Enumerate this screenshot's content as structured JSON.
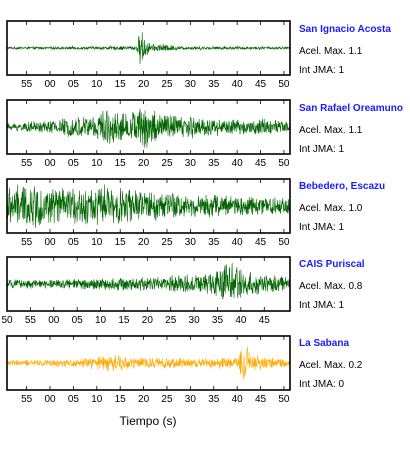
{
  "chart_data": [
    {
      "type": "line",
      "station": "San Ignacio Acosta",
      "acel_label": "Acel. Max.",
      "acel_value": "1.1",
      "jma_label": "Int JMA:",
      "jma_value": "1",
      "color": "#006400",
      "x_tick_labels": [
        "55",
        "00",
        "05",
        "10",
        "15",
        "20",
        "25",
        "30",
        "35",
        "40",
        "45",
        "50"
      ],
      "x_tick_seconds": [
        55,
        60,
        65,
        70,
        75,
        80,
        85,
        90,
        95,
        100,
        105,
        110
      ],
      "x_range_seconds": [
        50.8,
        111.3
      ],
      "y_range": [
        -1,
        1
      ],
      "waveform_envelope": [
        {
          "t": 50.8,
          "amp": 0.05
        },
        {
          "t": 70,
          "amp": 0.07
        },
        {
          "t": 78.5,
          "amp": 0.1
        },
        {
          "t": 79.4,
          "amp": 0.9
        },
        {
          "t": 80.2,
          "amp": 0.45
        },
        {
          "t": 82,
          "amp": 0.15
        },
        {
          "t": 83.5,
          "amp": 0.2
        },
        {
          "t": 88,
          "amp": 0.08
        },
        {
          "t": 111.3,
          "amp": 0.06
        }
      ]
    },
    {
      "type": "line",
      "station": "San Rafael Oreamuno",
      "acel_label": "Acel. Max.",
      "acel_value": "1.1",
      "jma_label": "Int JMA:",
      "jma_value": "1",
      "color": "#006400",
      "x_tick_labels": [
        "55",
        "00",
        "05",
        "10",
        "15",
        "20",
        "25",
        "30",
        "35",
        "40",
        "45",
        "50"
      ],
      "x_tick_seconds": [
        55,
        60,
        65,
        70,
        75,
        80,
        85,
        90,
        95,
        100,
        105,
        110
      ],
      "x_range_seconds": [
        50.8,
        111.3
      ],
      "y_range": [
        -1,
        1
      ],
      "waveform_envelope": [
        {
          "t": 50.8,
          "amp": 0.15
        },
        {
          "t": 60,
          "amp": 0.3
        },
        {
          "t": 68,
          "amp": 0.5
        },
        {
          "t": 72,
          "amp": 0.75
        },
        {
          "t": 77,
          "amp": 0.6
        },
        {
          "t": 80,
          "amp": 0.95
        },
        {
          "t": 85,
          "amp": 0.6
        },
        {
          "t": 92,
          "amp": 0.45
        },
        {
          "t": 100,
          "amp": 0.3
        },
        {
          "t": 106,
          "amp": 0.4
        },
        {
          "t": 111.3,
          "amp": 0.2
        }
      ]
    },
    {
      "type": "line",
      "station": "Bebedero, Escazu",
      "acel_label": "Acel. Max.",
      "acel_value": "1.0",
      "jma_label": "Int JMA:",
      "jma_value": "1",
      "color": "#006400",
      "x_tick_labels": [
        "55",
        "00",
        "05",
        "10",
        "15",
        "20",
        "25",
        "30",
        "35",
        "40",
        "45",
        "50"
      ],
      "x_tick_seconds": [
        55,
        60,
        65,
        70,
        75,
        80,
        85,
        90,
        95,
        100,
        105,
        110
      ],
      "x_range_seconds": [
        50.8,
        111.3
      ],
      "y_range": [
        -1,
        1
      ],
      "waveform_envelope": [
        {
          "t": 50.8,
          "amp": 0.85
        },
        {
          "t": 56,
          "amp": 0.95
        },
        {
          "t": 62,
          "amp": 0.75
        },
        {
          "t": 68,
          "amp": 0.8
        },
        {
          "t": 72,
          "amp": 0.9
        },
        {
          "t": 78,
          "amp": 0.7
        },
        {
          "t": 84,
          "amp": 0.65
        },
        {
          "t": 90,
          "amp": 0.5
        },
        {
          "t": 96,
          "amp": 0.5
        },
        {
          "t": 102,
          "amp": 0.45
        },
        {
          "t": 111.3,
          "amp": 0.4
        }
      ]
    },
    {
      "type": "line",
      "station": "CAIS Puriscal",
      "acel_label": "Acel. Max.",
      "acel_value": "0.8",
      "jma_label": "Int JMA:",
      "jma_value": "1",
      "color": "#006400",
      "x_tick_labels": [
        "50",
        "55",
        "00",
        "05",
        "10",
        "15",
        "20",
        "25",
        "30",
        "35",
        "40",
        "45"
      ],
      "x_tick_seconds": [
        50,
        55,
        60,
        65,
        70,
        75,
        80,
        85,
        90,
        95,
        100,
        105
      ],
      "x_range_seconds": [
        50,
        110.5
      ],
      "y_range": [
        -1,
        1
      ],
      "waveform_envelope": [
        {
          "t": 50,
          "amp": 0.18
        },
        {
          "t": 60,
          "amp": 0.2
        },
        {
          "t": 70,
          "amp": 0.25
        },
        {
          "t": 80,
          "amp": 0.3
        },
        {
          "t": 88,
          "amp": 0.4
        },
        {
          "t": 93,
          "amp": 0.5
        },
        {
          "t": 96,
          "amp": 0.85
        },
        {
          "t": 98,
          "amp": 0.95
        },
        {
          "t": 101,
          "amp": 0.55
        },
        {
          "t": 105,
          "amp": 0.4
        },
        {
          "t": 110.5,
          "amp": 0.3
        }
      ]
    },
    {
      "type": "line",
      "station": "La Sabana",
      "acel_label": "Acel. Max.",
      "acel_value": "0.2",
      "jma_label": "Int JMA:",
      "jma_value": "0",
      "color": "#ffaa00",
      "x_tick_labels": [
        "55",
        "00",
        "05",
        "10",
        "15",
        "20",
        "25",
        "30",
        "35",
        "40",
        "45",
        "50"
      ],
      "x_tick_seconds": [
        55,
        60,
        65,
        70,
        75,
        80,
        85,
        90,
        95,
        100,
        105,
        110
      ],
      "x_range_seconds": [
        50.8,
        111.3
      ],
      "y_range": [
        -1,
        1
      ],
      "waveform_envelope": [
        {
          "t": 50.8,
          "amp": 0.12
        },
        {
          "t": 60,
          "amp": 0.15
        },
        {
          "t": 68,
          "amp": 0.22
        },
        {
          "t": 74,
          "amp": 0.4
        },
        {
          "t": 78,
          "amp": 0.25
        },
        {
          "t": 88,
          "amp": 0.22
        },
        {
          "t": 100,
          "amp": 0.25
        },
        {
          "t": 101.5,
          "amp": 0.95
        },
        {
          "t": 103,
          "amp": 0.4
        },
        {
          "t": 111.3,
          "amp": 0.15
        }
      ]
    }
  ],
  "x_axis_title": "Tiempo (s)"
}
